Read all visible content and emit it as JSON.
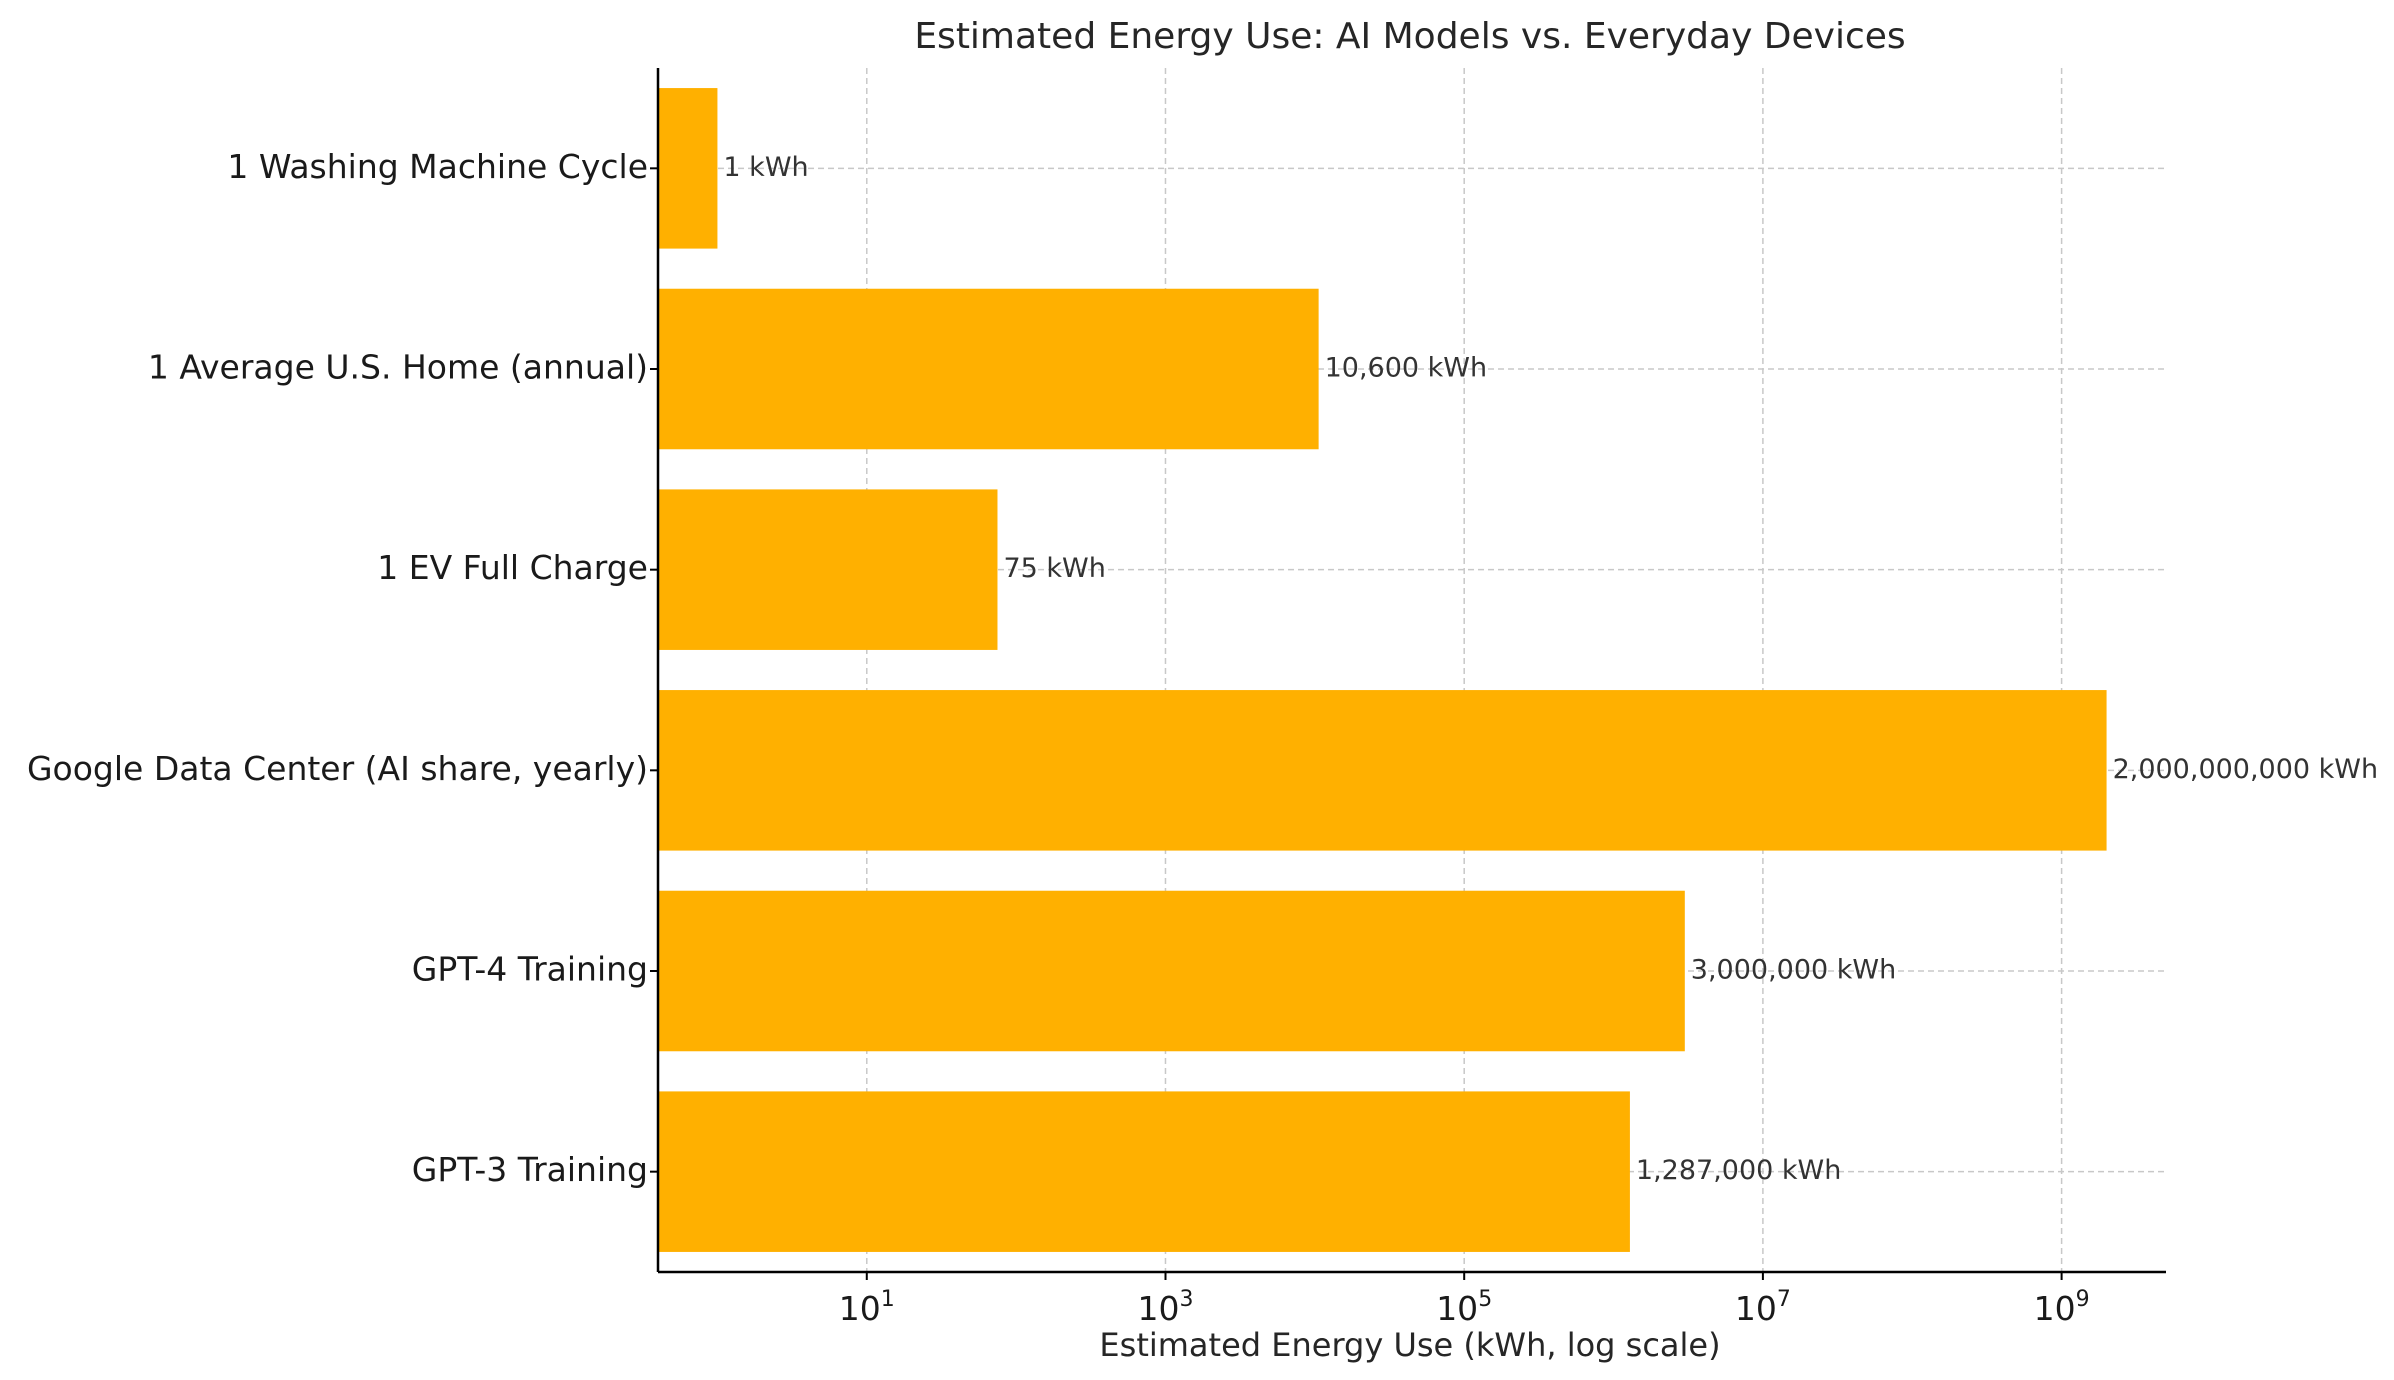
{
  "chart_data": {
    "type": "bar",
    "orientation": "horizontal",
    "title": "Estimated Energy Use: AI Models vs. Everyday Devices",
    "xlabel": "Estimated Energy Use (kWh, log scale)",
    "ylabel": "",
    "x_scale": "log",
    "xlim": [
      0.4,
      5000000000
    ],
    "grid": true,
    "categories": [
      "1 Washing Machine Cycle",
      "1 Average U.S. Home (annual)",
      "1 EV Full Charge",
      "Google Data Center (AI share, yearly)",
      "GPT-4 Training",
      "GPT-3 Training"
    ],
    "values": [
      1,
      10600,
      75,
      2000000000,
      3000000,
      1287000
    ],
    "data_labels": [
      "1 kWh",
      "10,600 kWh",
      "75 kWh",
      "2,000,000,000 kWh",
      "3,000,000 kWh",
      "1,287,000 kWh"
    ],
    "x_ticks": [
      {
        "base": "10",
        "exp": "1",
        "value": 10
      },
      {
        "base": "10",
        "exp": "3",
        "value": 1000
      },
      {
        "base": "10",
        "exp": "5",
        "value": 100000
      },
      {
        "base": "10",
        "exp": "7",
        "value": 10000000
      },
      {
        "base": "10",
        "exp": "9",
        "value": 1000000000
      }
    ],
    "colors": {
      "bar": "#FFB000"
    }
  }
}
